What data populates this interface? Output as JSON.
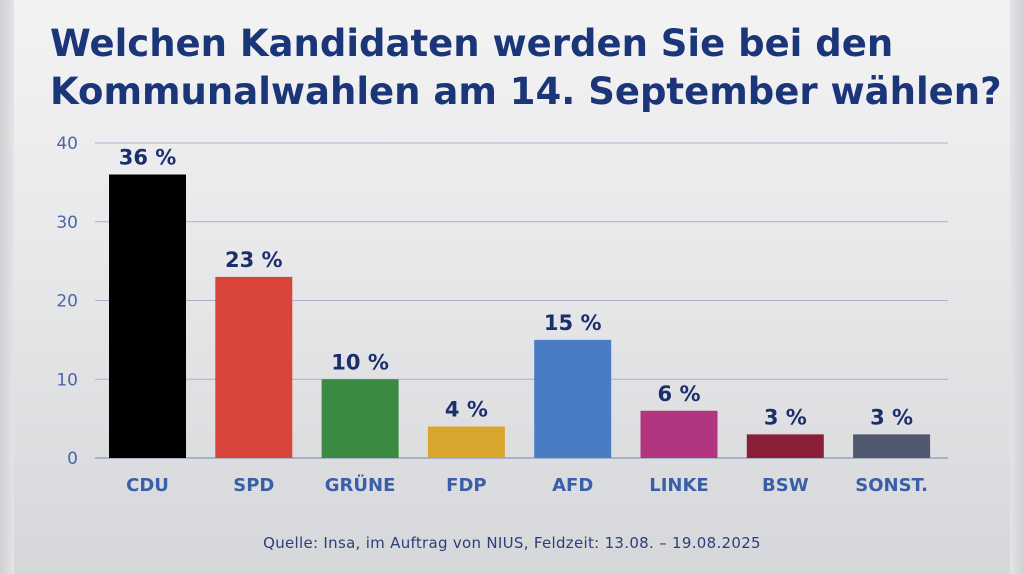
{
  "title_lines": [
    "Welchen Kandidaten werden Sie bei den",
    "Kommunalwahlen am 14. September wählen?"
  ],
  "source": "Quelle: Insa, im Auftrag von NIUS, Feldzeit: 13.08. – 19.08.2025",
  "chart_data": {
    "type": "bar",
    "title": "Welchen Kandidaten werden Sie bei den Kommunalwahlen am 14. September wählen?",
    "categories": [
      "CDU",
      "SPD",
      "GRÜNE",
      "FDP",
      "AFD",
      "LINKE",
      "BSW",
      "SONST."
    ],
    "values": [
      36,
      23,
      10,
      4,
      15,
      6,
      3,
      3
    ],
    "value_labels": [
      "36 %",
      "23 %",
      "10 %",
      "4 %",
      "15 %",
      "6 %",
      "3 %",
      "3 %"
    ],
    "colors": [
      "#000000",
      "#d9453a",
      "#3a8a41",
      "#d8a62d",
      "#4a7cc4",
      "#b2357f",
      "#8a1f3a",
      "#515970"
    ],
    "yticks": [
      "0",
      "10",
      "20",
      "30",
      "40"
    ],
    "ylim": [
      0,
      40
    ],
    "xlabel": "",
    "ylabel": "",
    "grid": true,
    "legend": "none"
  }
}
